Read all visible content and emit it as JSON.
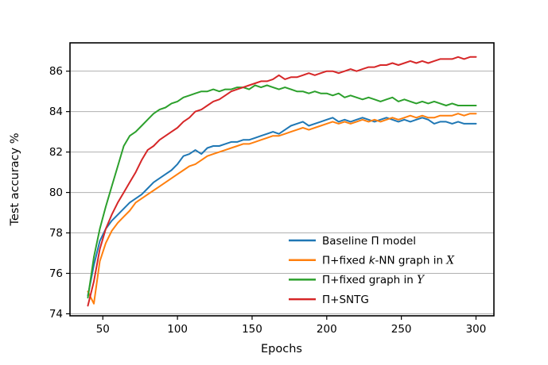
{
  "figure": {
    "background": "#ffffff"
  },
  "chart_data": {
    "type": "line",
    "title": "",
    "xlabel": "Epochs",
    "ylabel": "Test accuracy %",
    "xlim": [
      28,
      312
    ],
    "ylim": [
      73.9,
      87.4
    ],
    "xticks": [
      50,
      100,
      150,
      200,
      250,
      300
    ],
    "yticks": [
      74,
      76,
      78,
      80,
      82,
      84,
      86
    ],
    "grid": "horizontal",
    "grid_color": "#b0b0b0",
    "spine_color": "#000000",
    "x_start": 40,
    "x_step": 4,
    "series": [
      {
        "key": "baseline-pi-model",
        "name": "Baseline Π model",
        "color": "#1f77b4",
        "values": [
          74.9,
          76.4,
          77.6,
          78.2,
          78.6,
          78.9,
          79.2,
          79.5,
          79.7,
          79.9,
          80.2,
          80.5,
          80.7,
          80.9,
          81.1,
          81.4,
          81.8,
          81.9,
          82.1,
          81.9,
          82.2,
          82.3,
          82.3,
          82.4,
          82.5,
          82.5,
          82.6,
          82.6,
          82.7,
          82.8,
          82.9,
          83.0,
          82.9,
          83.1,
          83.3,
          83.4,
          83.5,
          83.3,
          83.4,
          83.5,
          83.6,
          83.7,
          83.5,
          83.6,
          83.5,
          83.6,
          83.7,
          83.6,
          83.5,
          83.6,
          83.7,
          83.6,
          83.5,
          83.6,
          83.5,
          83.6,
          83.7,
          83.6,
          83.4,
          83.5,
          83.5,
          83.4,
          83.5,
          83.4,
          83.4,
          83.4
        ]
      },
      {
        "key": "pi-fixed-knn-graph-x",
        "name": "Π+fixed k-NN graph in X",
        "color": "#ff7f0e",
        "values": [
          75.1,
          74.5,
          76.6,
          77.5,
          78.1,
          78.5,
          78.8,
          79.1,
          79.5,
          79.7,
          79.9,
          80.1,
          80.3,
          80.5,
          80.7,
          80.9,
          81.1,
          81.3,
          81.4,
          81.6,
          81.8,
          81.9,
          82.0,
          82.1,
          82.2,
          82.3,
          82.4,
          82.4,
          82.5,
          82.6,
          82.7,
          82.8,
          82.8,
          82.9,
          83.0,
          83.1,
          83.2,
          83.1,
          83.2,
          83.3,
          83.4,
          83.5,
          83.4,
          83.5,
          83.4,
          83.5,
          83.6,
          83.5,
          83.6,
          83.5,
          83.6,
          83.7,
          83.6,
          83.7,
          83.8,
          83.7,
          83.8,
          83.7,
          83.7,
          83.8,
          83.8,
          83.8,
          83.9,
          83.8,
          83.9,
          83.9
        ]
      },
      {
        "key": "pi-fixed-graph-y",
        "name": "Π+fixed graph in Y",
        "color": "#2ca02c",
        "values": [
          74.8,
          76.8,
          78.2,
          79.3,
          80.3,
          81.3,
          82.3,
          82.8,
          83.0,
          83.3,
          83.6,
          83.9,
          84.1,
          84.2,
          84.4,
          84.5,
          84.7,
          84.8,
          84.9,
          85.0,
          85.0,
          85.1,
          85.0,
          85.1,
          85.1,
          85.2,
          85.2,
          85.1,
          85.3,
          85.2,
          85.3,
          85.2,
          85.1,
          85.2,
          85.1,
          85.0,
          85.0,
          84.9,
          85.0,
          84.9,
          84.9,
          84.8,
          84.9,
          84.7,
          84.8,
          84.7,
          84.6,
          84.7,
          84.6,
          84.5,
          84.6,
          84.7,
          84.5,
          84.6,
          84.5,
          84.4,
          84.5,
          84.4,
          84.5,
          84.4,
          84.3,
          84.4,
          84.3,
          84.3,
          84.3,
          84.3
        ]
      },
      {
        "key": "pi-sntg",
        "name": "Π+SNTG",
        "color": "#d62728",
        "values": [
          74.4,
          75.6,
          77.2,
          78.2,
          78.9,
          79.5,
          80.0,
          80.5,
          81.0,
          81.6,
          82.1,
          82.3,
          82.6,
          82.8,
          83.0,
          83.2,
          83.5,
          83.7,
          84.0,
          84.1,
          84.3,
          84.5,
          84.6,
          84.8,
          85.0,
          85.1,
          85.2,
          85.3,
          85.4,
          85.5,
          85.5,
          85.6,
          85.8,
          85.6,
          85.7,
          85.7,
          85.8,
          85.9,
          85.8,
          85.9,
          86.0,
          86.0,
          85.9,
          86.0,
          86.1,
          86.0,
          86.1,
          86.2,
          86.2,
          86.3,
          86.3,
          86.4,
          86.3,
          86.4,
          86.5,
          86.4,
          86.5,
          86.4,
          86.5,
          86.6,
          86.6,
          86.6,
          86.7,
          86.6,
          86.7,
          86.7
        ]
      }
    ],
    "legend": {
      "position": "lower right",
      "frame": false,
      "items": [
        {
          "color": "#1f77b4",
          "segments": [
            [
              "Baseline Π model",
              "n"
            ]
          ]
        },
        {
          "color": "#ff7f0e",
          "segments": [
            [
              "Π+fixed ",
              "n"
            ],
            [
              "k",
              "i"
            ],
            [
              "-NN graph in ",
              "n"
            ],
            [
              "X",
              "cal"
            ]
          ]
        },
        {
          "color": "#2ca02c",
          "segments": [
            [
              "Π+fixed graph in ",
              "n"
            ],
            [
              "Y",
              "cal"
            ]
          ]
        },
        {
          "color": "#d62728",
          "segments": [
            [
              "Π+SNTG",
              "n"
            ]
          ]
        }
      ]
    }
  }
}
